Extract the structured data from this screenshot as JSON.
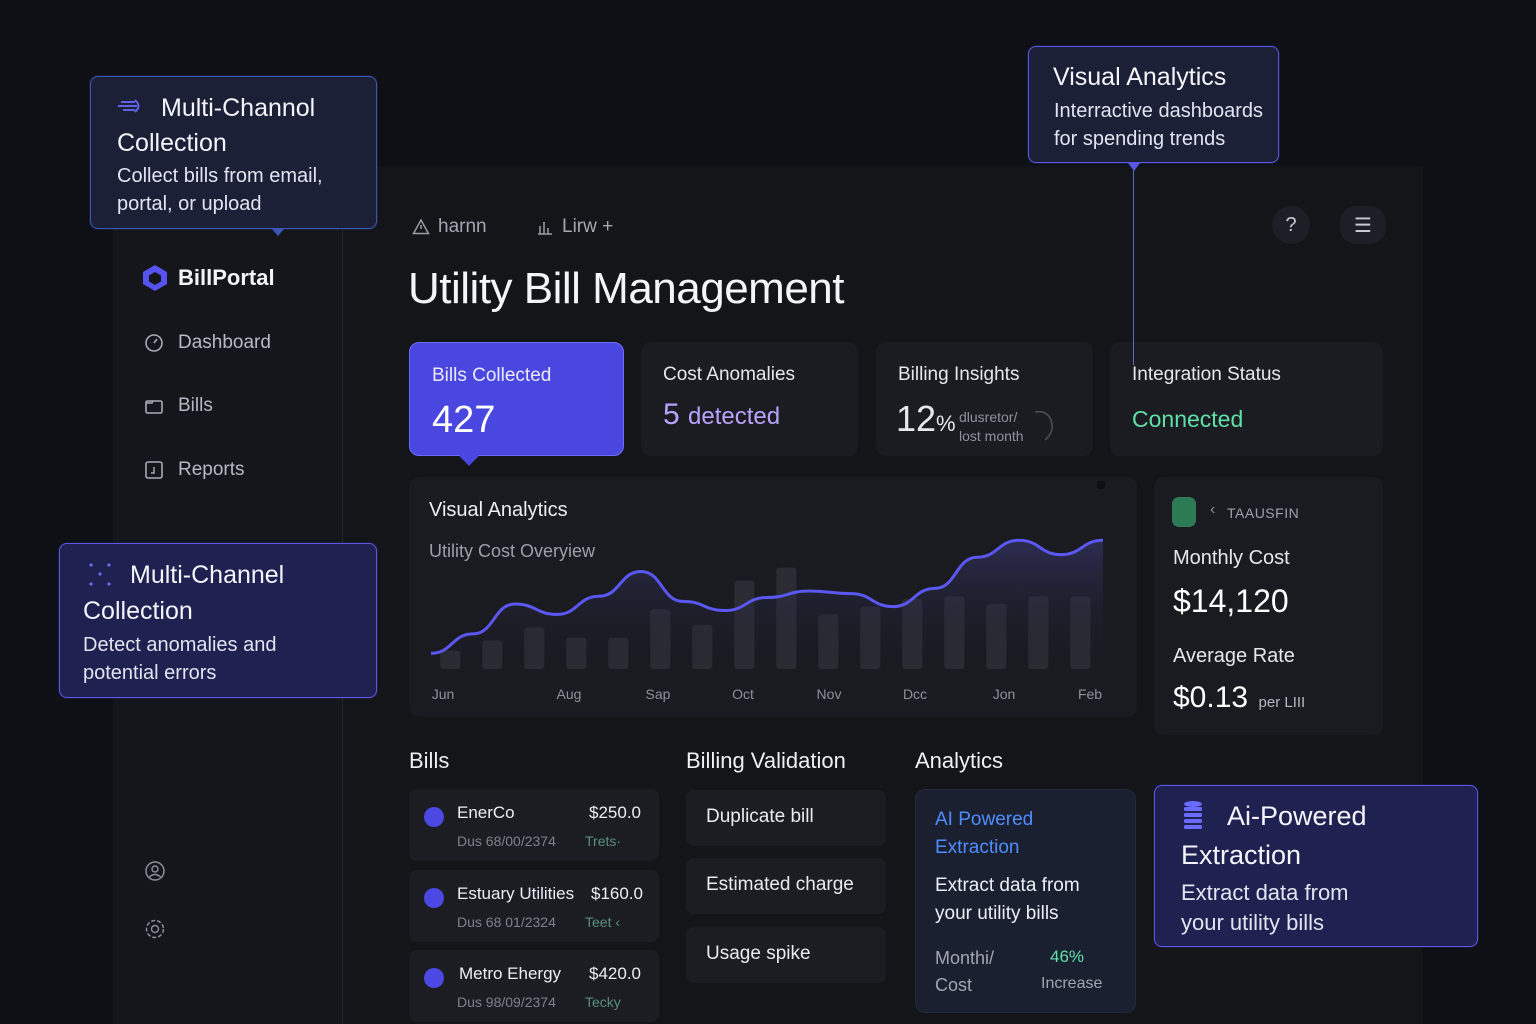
{
  "callouts": {
    "top_left": {
      "title": "Multi-Channol Collection",
      "title_line1": "Multi-Channol",
      "title_line2": "Collection",
      "body_line1": "Collect bills from email,",
      "body_line2": "portal, or upload"
    },
    "top_right": {
      "title": "Visual Analytics",
      "body_line1": "Interractive dashboards",
      "body_line2": "for spending trends"
    },
    "mid_left": {
      "title_line1": "Multi-Channel",
      "title_line2": "Collection",
      "body_line1": "Detect anomalies and",
      "body_line2": "potential errors"
    },
    "bottom_right": {
      "title_line1": "Ai-Powered",
      "title_line2": "Extraction",
      "body_line1": "Extract data from",
      "body_line2": "your utility bills"
    }
  },
  "sidebar": {
    "brand": "BillPortal",
    "items": [
      {
        "label": "Dashboard",
        "icon": "dashboard-icon"
      },
      {
        "label": "Bills",
        "icon": "folder-icon"
      },
      {
        "label": "Reports",
        "icon": "report-icon"
      }
    ]
  },
  "topbar": {
    "link1": "harnn",
    "link2": "Lirw +",
    "help": "?",
    "menu": "☰"
  },
  "page_title": "Utility Bill Management",
  "stats": {
    "bills_collected": {
      "label": "Bills Collected",
      "value": "427"
    },
    "cost_anomalies": {
      "label": "Cost Anomalies",
      "value": "5",
      "suffix": "detected"
    },
    "billing_insights": {
      "label": "Billing Insights",
      "value": "12",
      "unit": "%",
      "note1": "dlusretor/",
      "note2": "lost month"
    },
    "integration_status": {
      "label": "Integration Status",
      "value": "Connected"
    }
  },
  "chart_data": {
    "type": "area",
    "title": "Visual Analytics",
    "subtitle": "Utility Cost Overyiew",
    "x_tick_labels": [
      "Jun",
      "Aug",
      "Sap",
      "Oct",
      "Nov",
      "Dcc",
      "Jon",
      "Feb"
    ],
    "line": [
      0.12,
      0.27,
      0.5,
      0.42,
      0.56,
      0.75,
      0.52,
      0.45,
      0.55,
      0.6,
      0.58,
      0.48,
      0.62,
      0.86,
      0.99,
      0.88,
      0.99
    ],
    "bars": [
      0.14,
      0.22,
      0.32,
      0.24,
      0.24,
      0.46,
      0.34,
      0.68,
      0.78,
      0.42,
      0.48,
      0.54,
      0.56,
      0.5,
      0.56,
      0.56
    ]
  },
  "cost_panel": {
    "tag": "TAAUSFIN",
    "monthly_label": "Monthly Cost",
    "monthly_value": "$14,120",
    "rate_label": "Average Rate",
    "rate_value": "$0.13",
    "rate_unit": "per LIII"
  },
  "bills": {
    "title": "Bills",
    "rows": [
      {
        "name": "EnerCo",
        "amount": "$250.0",
        "date": "Dus 68/00/2374",
        "status": "Trets·"
      },
      {
        "name": "Estuary Utilities",
        "amount": "$160.0",
        "date": "Dus 68 01/2324",
        "status": "Teet ‹"
      },
      {
        "name": "Metro Ehergy",
        "amount": "$420.0",
        "date": "Dus 98/09/2374",
        "status": "Tecky"
      }
    ]
  },
  "validation": {
    "title": "Billing Validation",
    "items": [
      "Duplicate bill",
      "Estimated charge",
      "Usage spike"
    ]
  },
  "analytics": {
    "title": "Analytics",
    "card_title_line1": "AI Powered",
    "card_title_line2": "Extraction",
    "body_line1": "Extract data from",
    "body_line2": "your utility bills",
    "metric_label_line1": "Monthi/",
    "metric_label_line2": "Cost",
    "metric_value": "46%",
    "metric_note": "Increase"
  },
  "colors": {
    "accent": "#4a47e0",
    "positive": "#5fe0a8",
    "purple_text": "#b9a3ff",
    "link_blue": "#4f8dff"
  }
}
